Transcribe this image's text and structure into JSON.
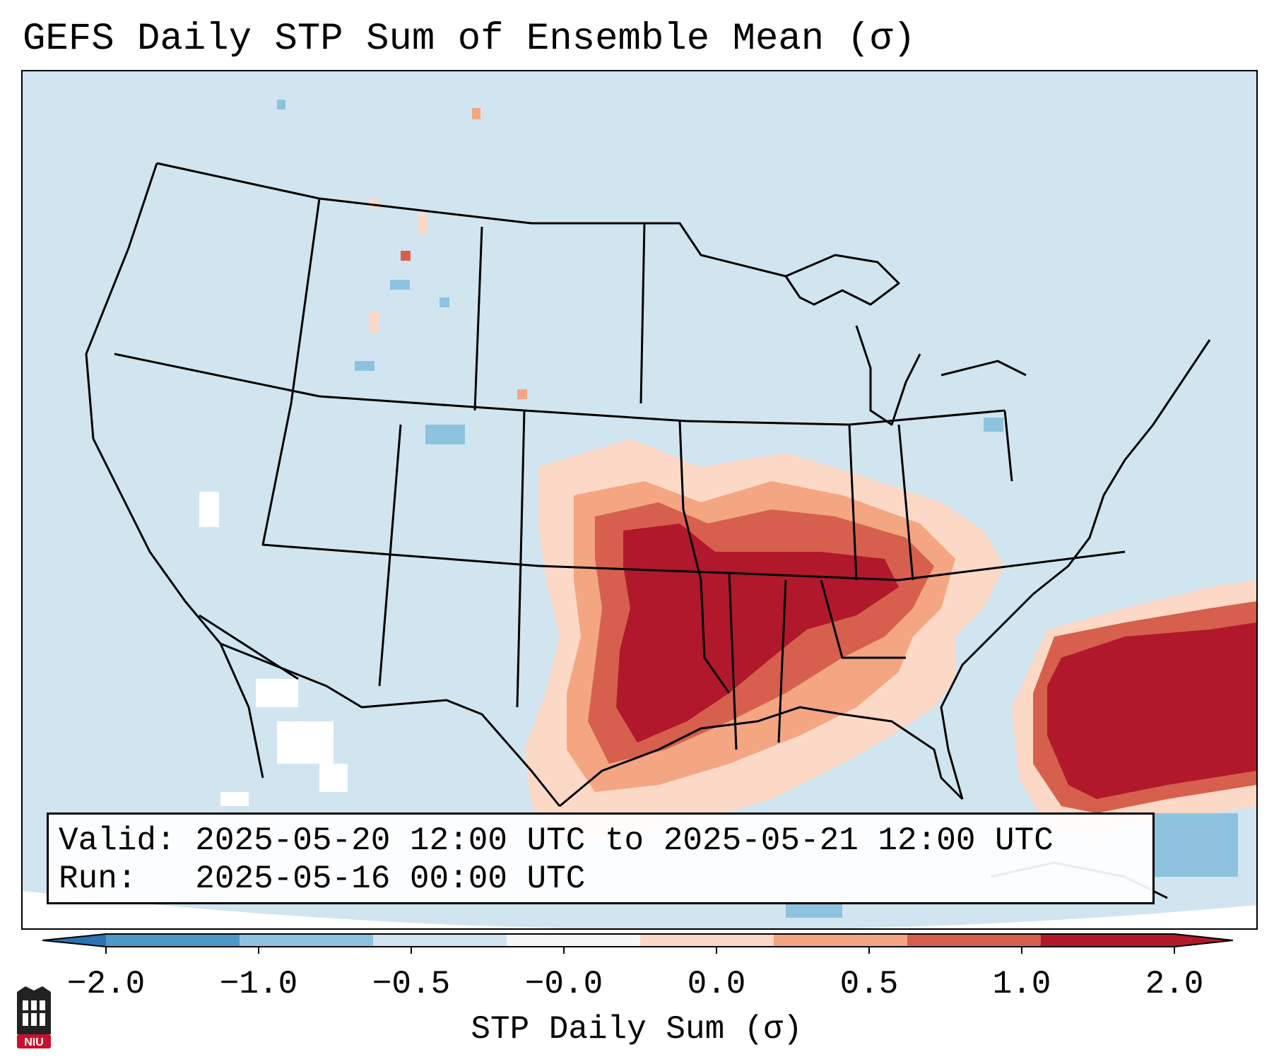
{
  "title": "GEFS Daily STP Sum of Ensemble Mean (σ)",
  "info": {
    "valid_label": "Valid:",
    "valid_value": "2025-05-20 12:00 UTC to 2025-05-21 12:00 UTC",
    "run_label": "Run:",
    "run_value": "2025-05-16 00:00 UTC"
  },
  "colorbar": {
    "label": "STP Daily Sum (σ)",
    "ticks": [
      "−2.0",
      "−1.0",
      "−0.5",
      "−0.0",
      "0.0",
      "0.5",
      "1.0",
      "2.0"
    ],
    "colors": [
      "#4c98c8",
      "#8ec3df",
      "#d1e5f0",
      "#f7f7f7",
      "#fcd9c6",
      "#f4a582",
      "#d6604d",
      "#b2182b"
    ],
    "extend_low_color": "#2a72b1",
    "extend_high_color": "#b2182b"
  },
  "map": {
    "background_color": "#d1e5f0",
    "outer_color": "#ffffff",
    "line_color": "#000000"
  },
  "logo": {
    "text": "NIU",
    "colors": {
      "tower": "#222222",
      "badge": "#c8102e"
    }
  }
}
